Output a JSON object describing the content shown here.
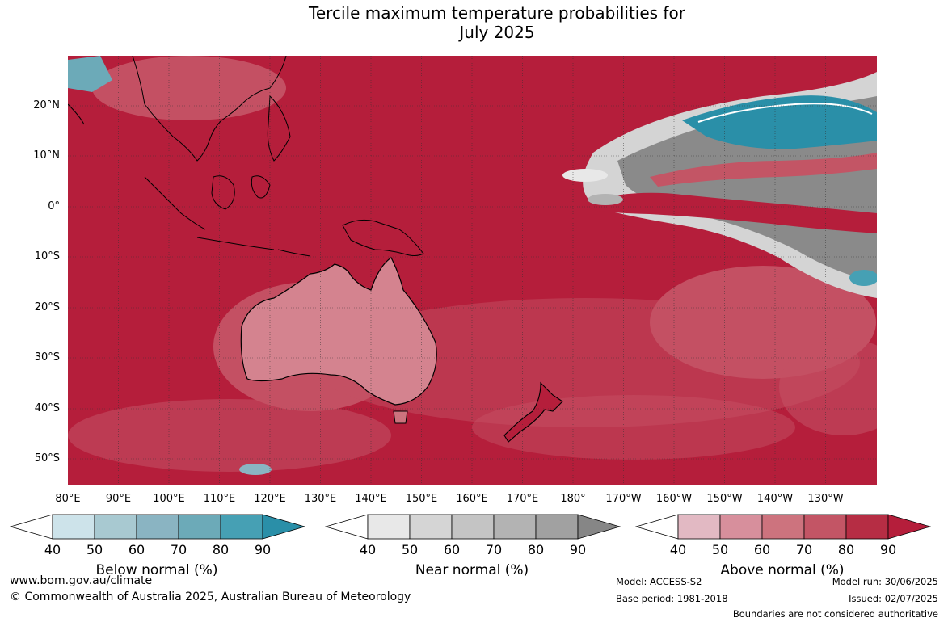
{
  "title": {
    "line1": "Tercile maximum temperature probabilities for",
    "line2": "July 2025"
  },
  "map": {
    "lat_labels": [
      "20°N",
      "10°N",
      "0°",
      "10°S",
      "20°S",
      "30°S",
      "40°S",
      "50°S"
    ],
    "lon_labels": [
      "80°E",
      "90°E",
      "100°E",
      "110°E",
      "120°E",
      "130°E",
      "140°E",
      "150°E",
      "160°E",
      "170°E",
      "180°",
      "170°W",
      "160°W",
      "150°W",
      "140°W",
      "130°W"
    ],
    "colors": {
      "ocean_base": "#b51e3b",
      "land_outline": "#000000",
      "gridline": "#333333"
    }
  },
  "colorbars": [
    {
      "label": "Below normal (%)",
      "ticks": [
        "40",
        "50",
        "60",
        "70",
        "80",
        "90"
      ],
      "colors": [
        "#ffffff",
        "#cde3ea",
        "#a8c9d1",
        "#8ab4c2",
        "#6caab8",
        "#46a0b4",
        "#2a8fa8"
      ]
    },
    {
      "label": "Near normal (%)",
      "ticks": [
        "40",
        "50",
        "60",
        "70",
        "80",
        "90"
      ],
      "colors": [
        "#ffffff",
        "#e8e8e8",
        "#d5d5d5",
        "#c4c4c4",
        "#b3b3b3",
        "#a1a1a1",
        "#868686"
      ]
    },
    {
      "label": "Above normal (%)",
      "ticks": [
        "40",
        "50",
        "60",
        "70",
        "80",
        "90"
      ],
      "colors": [
        "#ffffff",
        "#e2b9c3",
        "#d78f9c",
        "#cd737e",
        "#c35565",
        "#b62d44",
        "#b51e3b"
      ]
    }
  ],
  "footer": {
    "website": "www.bom.gov.au/climate",
    "copyright": "© Commonwealth of Australia 2025, Australian Bureau of Meteorology",
    "model": "Model: ACCESS-S2",
    "base_period": "Base period: 1981-2018",
    "model_run": "Model run: 30/06/2025",
    "issued": "Issued: 02/07/2025",
    "disclaimer": "Boundaries are not considered authoritative"
  }
}
